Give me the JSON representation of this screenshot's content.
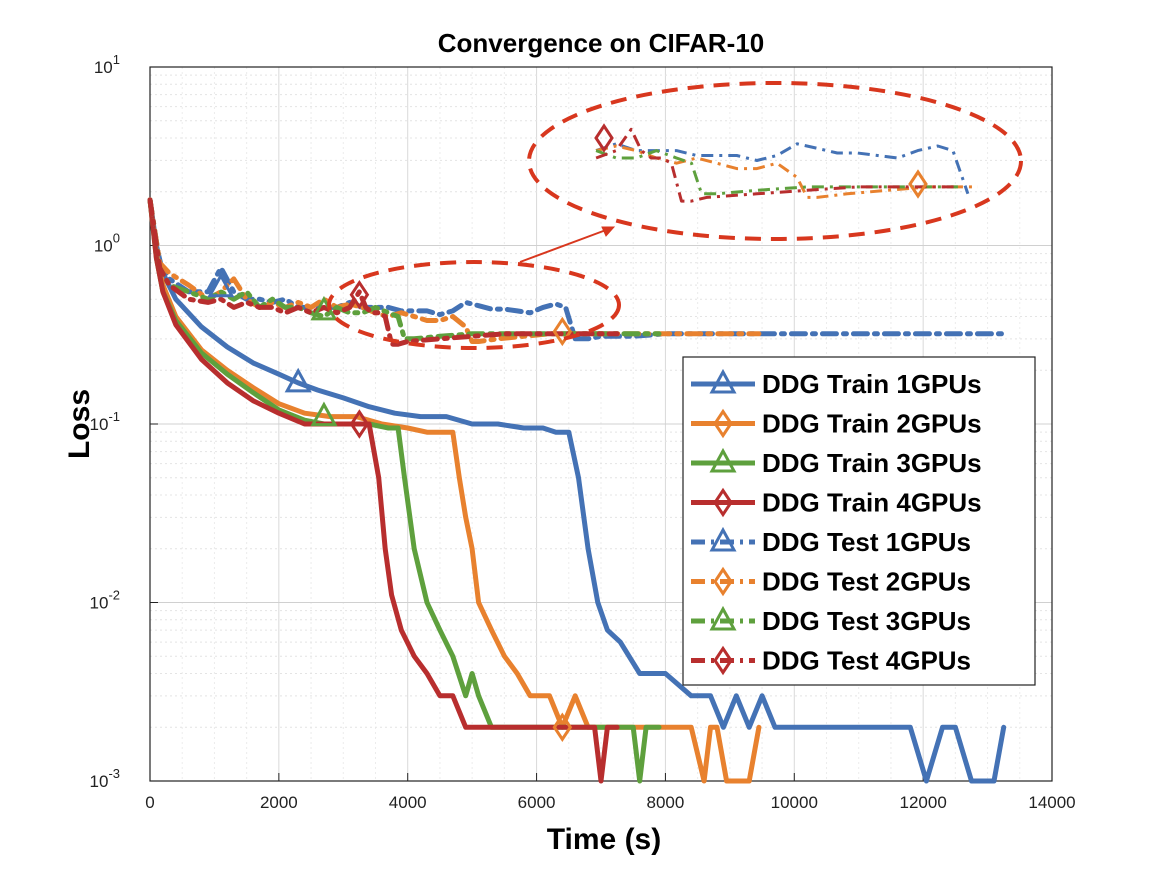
{
  "chart_data": {
    "type": "line",
    "title": "Convergence on CIFAR-10",
    "xlabel": "Time (s)",
    "ylabel": "Loss",
    "xlim": [
      0,
      14000
    ],
    "ylim": [
      0.001,
      10
    ],
    "yscale": "log",
    "grid": true,
    "legend_position": "lower-right",
    "x_ticks": [
      "0",
      "2000",
      "4000",
      "6000",
      "8000",
      "10000",
      "12000",
      "14000"
    ],
    "y_ticks": [
      {
        "base": "10",
        "exp": "-3"
      },
      {
        "base": "10",
        "exp": "-2"
      },
      {
        "base": "10",
        "exp": "-1"
      },
      {
        "base": "10",
        "exp": "0"
      },
      {
        "base": "10",
        "exp": "1"
      }
    ],
    "annotations": [
      "dashed ellipse around test curves (approx. 4000–6000 s)",
      "zoomed inset of test curves at top-right with arrow"
    ],
    "series": [
      {
        "name": "DDG Train 1GPUs",
        "color": "#4472b5",
        "dash": false,
        "marker": "triangle",
        "x": [
          0,
          100,
          200,
          400,
          800,
          1200,
          1600,
          2000,
          2300,
          2600,
          3000,
          3400,
          3800,
          4200,
          4600,
          5000,
          5400,
          5800,
          6100,
          6300,
          6500,
          6650,
          6800,
          6950,
          7100,
          7300,
          7600,
          8000,
          8400,
          8700,
          8900,
          9100,
          9300,
          9500,
          9700,
          10000,
          11000,
          11800,
          12050,
          12300,
          12500,
          12750,
          12900,
          13100,
          13250
        ],
        "y": [
          1.8,
          1.0,
          0.7,
          0.5,
          0.35,
          0.27,
          0.22,
          0.19,
          0.17,
          0.155,
          0.14,
          0.125,
          0.115,
          0.11,
          0.11,
          0.1,
          0.1,
          0.095,
          0.095,
          0.09,
          0.09,
          0.05,
          0.02,
          0.01,
          0.007,
          0.006,
          0.004,
          0.004,
          0.003,
          0.003,
          0.002,
          0.003,
          0.002,
          0.003,
          0.002,
          0.002,
          0.002,
          0.002,
          0.001,
          0.002,
          0.002,
          0.001,
          0.001,
          0.001,
          0.002
        ]
      },
      {
        "name": "DDG Train 2GPUs",
        "color": "#e8812e",
        "dash": false,
        "marker": "diamond",
        "x": [
          0,
          100,
          200,
          400,
          800,
          1200,
          1600,
          2000,
          2400,
          2800,
          3200,
          3600,
          4000,
          4300,
          4500,
          4700,
          4800,
          4900,
          5000,
          5100,
          5300,
          5500,
          5700,
          5900,
          6200,
          6400,
          6600,
          6800,
          7000,
          7300,
          7800,
          8400,
          8600,
          8700,
          8800,
          8950,
          9100,
          9300,
          9450
        ],
        "y": [
          1.8,
          0.9,
          0.6,
          0.4,
          0.26,
          0.2,
          0.16,
          0.13,
          0.115,
          0.11,
          0.11,
          0.1,
          0.095,
          0.09,
          0.09,
          0.09,
          0.05,
          0.03,
          0.02,
          0.01,
          0.007,
          0.005,
          0.004,
          0.003,
          0.003,
          0.002,
          0.003,
          0.002,
          0.002,
          0.002,
          0.002,
          0.002,
          0.001,
          0.002,
          0.002,
          0.001,
          0.001,
          0.001,
          0.002
        ]
      },
      {
        "name": "DDG Train 3GPUs",
        "color": "#5ea03d",
        "dash": false,
        "marker": "triangle",
        "x": [
          0,
          100,
          200,
          400,
          800,
          1200,
          1600,
          2000,
          2400,
          2700,
          3000,
          3400,
          3700,
          3850,
          3950,
          4100,
          4300,
          4500,
          4700,
          4900,
          5000,
          5100,
          5300,
          5600,
          6000,
          6500,
          7200,
          7500,
          7600,
          7700,
          7900
        ],
        "y": [
          1.8,
          0.85,
          0.55,
          0.38,
          0.25,
          0.19,
          0.15,
          0.12,
          0.105,
          0.1,
          0.1,
          0.1,
          0.095,
          0.095,
          0.05,
          0.02,
          0.01,
          0.007,
          0.005,
          0.003,
          0.004,
          0.003,
          0.002,
          0.002,
          0.002,
          0.002,
          0.002,
          0.002,
          0.001,
          0.002,
          0.002
        ]
      },
      {
        "name": "DDG Train 4GPUs",
        "color": "#b82e2e",
        "dash": false,
        "marker": "diamond",
        "x": [
          0,
          100,
          200,
          400,
          800,
          1200,
          1600,
          2000,
          2400,
          2800,
          3200,
          3400,
          3550,
          3650,
          3750,
          3900,
          4100,
          4300,
          4500,
          4700,
          4900,
          5200,
          6000,
          6900,
          7000,
          7100,
          7250
        ],
        "y": [
          1.8,
          0.85,
          0.55,
          0.36,
          0.23,
          0.17,
          0.135,
          0.115,
          0.1,
          0.1,
          0.1,
          0.1,
          0.05,
          0.02,
          0.011,
          0.007,
          0.005,
          0.004,
          0.003,
          0.003,
          0.002,
          0.002,
          0.002,
          0.002,
          0.001,
          0.002,
          0.002
        ]
      },
      {
        "name": "DDG Test 1GPUs",
        "color": "#4472b5",
        "dash": true,
        "marker": "triangle",
        "x": [
          0,
          150,
          300,
          600,
          900,
          1100,
          1300,
          1500,
          1700,
          1900,
          2100,
          2300,
          2500,
          2700,
          2900,
          3100,
          3300,
          3500,
          3700,
          3900,
          4100,
          4300,
          4500,
          4700,
          4900,
          5100,
          5300,
          5500,
          5700,
          5900,
          6100,
          6300,
          6450,
          6600,
          6800,
          7000,
          7500,
          8000,
          9000,
          10000,
          11000,
          12000,
          13250
        ],
        "y": [
          1.8,
          0.8,
          0.65,
          0.55,
          0.55,
          0.75,
          0.55,
          0.5,
          0.5,
          0.48,
          0.5,
          0.45,
          0.45,
          0.45,
          0.45,
          0.48,
          0.45,
          0.45,
          0.45,
          0.43,
          0.43,
          0.43,
          0.41,
          0.43,
          0.48,
          0.46,
          0.44,
          0.44,
          0.43,
          0.42,
          0.45,
          0.47,
          0.45,
          0.3,
          0.3,
          0.31,
          0.31,
          0.32,
          0.32,
          0.32,
          0.32,
          0.32,
          0.32
        ]
      },
      {
        "name": "DDG Test 2GPUs",
        "color": "#e8812e",
        "dash": true,
        "marker": "diamond",
        "x": [
          0,
          150,
          300,
          600,
          900,
          1100,
          1300,
          1500,
          1700,
          1900,
          2100,
          2300,
          2500,
          2700,
          2900,
          3100,
          3300,
          3500,
          3700,
          3900,
          4100,
          4300,
          4500,
          4700,
          4900,
          5000,
          5100,
          5400,
          5800,
          6200,
          6400,
          6700,
          7200,
          8000,
          9000,
          9450
        ],
        "y": [
          1.8,
          0.8,
          0.7,
          0.6,
          0.5,
          0.55,
          0.65,
          0.5,
          0.45,
          0.48,
          0.45,
          0.48,
          0.45,
          0.5,
          0.45,
          0.47,
          0.45,
          0.42,
          0.4,
          0.42,
          0.4,
          0.38,
          0.38,
          0.4,
          0.35,
          0.29,
          0.29,
          0.3,
          0.31,
          0.32,
          0.32,
          0.32,
          0.32,
          0.32,
          0.32,
          0.32
        ]
      },
      {
        "name": "DDG Test 3GPUs",
        "color": "#5ea03d",
        "dash": true,
        "marker": "triangle",
        "x": [
          0,
          150,
          300,
          600,
          900,
          1100,
          1300,
          1500,
          1700,
          1900,
          2100,
          2300,
          2500,
          2700,
          2900,
          3100,
          3300,
          3500,
          3700,
          3850,
          3950,
          4100,
          4500,
          5000,
          5500,
          6000,
          6500,
          7000,
          7500,
          7900
        ],
        "y": [
          1.8,
          0.75,
          0.6,
          0.55,
          0.5,
          0.55,
          0.5,
          0.55,
          0.45,
          0.5,
          0.45,
          0.45,
          0.42,
          0.4,
          0.45,
          0.42,
          0.42,
          0.45,
          0.42,
          0.4,
          0.3,
          0.3,
          0.31,
          0.32,
          0.32,
          0.32,
          0.32,
          0.32,
          0.32,
          0.32
        ]
      },
      {
        "name": "DDG Test 4GPUs",
        "color": "#b82e2e",
        "dash": true,
        "marker": "diamond",
        "x": [
          0,
          150,
          300,
          600,
          900,
          1100,
          1300,
          1500,
          1700,
          1900,
          2100,
          2300,
          2500,
          2700,
          2900,
          3100,
          3250,
          3350,
          3450,
          3550,
          3650,
          3750,
          3850,
          4000,
          4500,
          5000,
          5500,
          6000,
          6500,
          7000,
          7250
        ],
        "y": [
          1.8,
          0.75,
          0.6,
          0.5,
          0.48,
          0.5,
          0.45,
          0.48,
          0.45,
          0.45,
          0.42,
          0.45,
          0.42,
          0.45,
          0.42,
          0.45,
          0.55,
          0.45,
          0.42,
          0.42,
          0.4,
          0.28,
          0.28,
          0.29,
          0.3,
          0.31,
          0.32,
          0.32,
          0.32,
          0.32,
          0.32
        ]
      }
    ],
    "legend_markers": [
      {
        "series": 0,
        "x": 2300,
        "y": 0.17
      },
      {
        "series": 1,
        "x": 6400,
        "y": 0.002
      },
      {
        "series": 2,
        "x": 2700,
        "y": 0.11
      },
      {
        "series": 3,
        "x": 3250,
        "y": 0.1
      },
      {
        "series": 4,
        "x": 1100,
        "y": 0.58
      },
      {
        "series": 5,
        "x": 6400,
        "y": 0.33
      },
      {
        "series": 6,
        "x": 2700,
        "y": 0.43
      },
      {
        "series": 7,
        "x": 3250,
        "y": 0.53
      }
    ]
  }
}
